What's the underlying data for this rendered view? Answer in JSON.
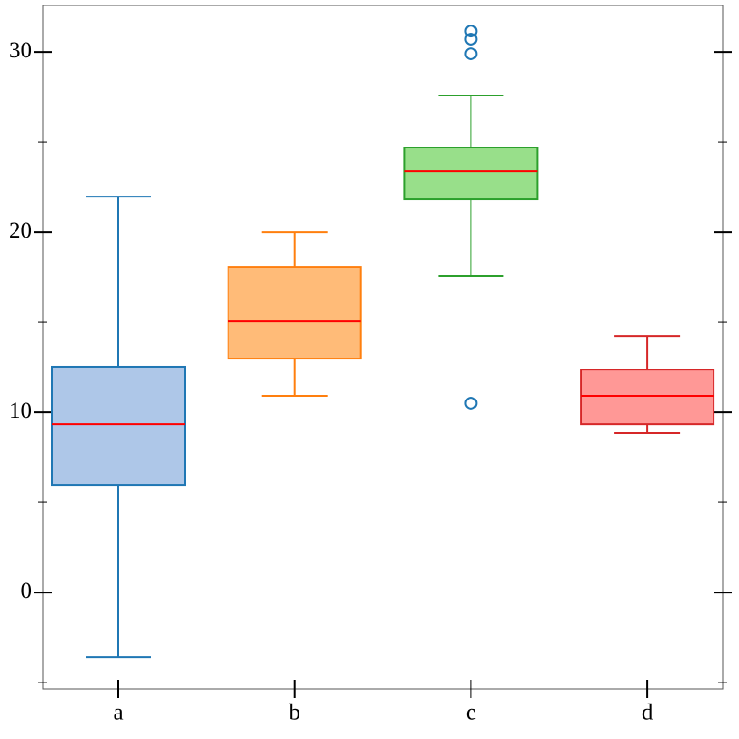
{
  "chart_data": {
    "type": "box",
    "categories": [
      "a",
      "b",
      "c",
      "d"
    ],
    "boxes": [
      {
        "color": "#1f77b4",
        "fill": "#aec7e8",
        "whislo": -3.59,
        "q1": 5.96,
        "med": 9.34,
        "q3": 12.53,
        "whishi": 21.97,
        "fliers": []
      },
      {
        "color": "#ff7f0e",
        "fill": "#ffbb78",
        "whislo": 10.91,
        "q1": 12.98,
        "med": 15.05,
        "q3": 18.08,
        "whishi": 20.0,
        "fliers": []
      },
      {
        "color": "#2ca02c",
        "fill": "#98df8a",
        "whislo": 17.58,
        "q1": 21.82,
        "med": 23.38,
        "q3": 24.7,
        "whishi": 27.58,
        "fliers": [
          10.51,
          29.9,
          30.71,
          31.16
        ]
      },
      {
        "color": "#d62728",
        "fill": "#ff9896",
        "whislo": 8.84,
        "q1": 9.34,
        "med": 10.91,
        "q3": 12.37,
        "whishi": 14.24,
        "fliers": []
      }
    ],
    "median_color": "#ff0000",
    "flier_color": "#1f77b4",
    "ylim": [
      -5.35,
      32.58
    ],
    "yticks": [
      0,
      10,
      20,
      30
    ],
    "yminorticks": [
      -5,
      5,
      15,
      25
    ]
  }
}
